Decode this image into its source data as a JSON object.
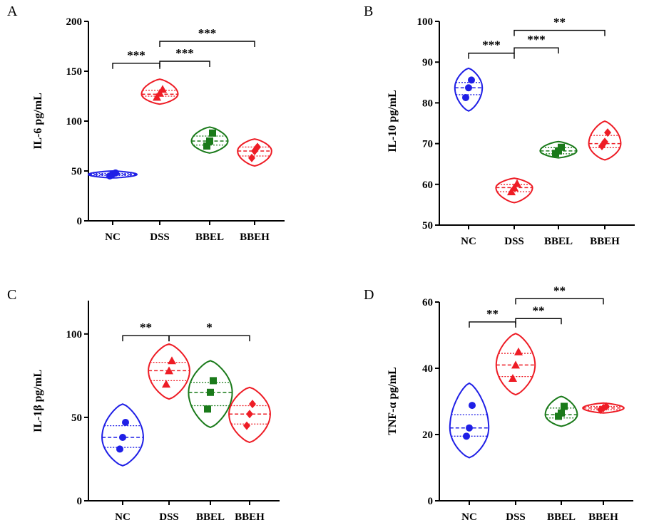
{
  "figure": {
    "categories": [
      "NC",
      "DSS",
      "BBEL",
      "BBEH"
    ],
    "colors": {
      "NC": "#1f1fe6",
      "DSS": "#ee1c25",
      "BBEL": "#1a7a1a",
      "BBEH": "#ee1c25"
    },
    "markers": {
      "NC": "circle",
      "DSS": "triangle",
      "BBEL": "square",
      "BBEH": "diamond"
    }
  },
  "chart_data": [
    {
      "type": "violin",
      "panel": "A",
      "ylabel": "IL-6 pg/mL",
      "ylim": [
        0,
        200
      ],
      "yticks": [
        0,
        50,
        100,
        150,
        200
      ],
      "categories": [
        "NC",
        "DSS",
        "BBEL",
        "BBEH"
      ],
      "groups": [
        {
          "name": "NC",
          "points": [
            45,
            47,
            48
          ],
          "median": 46.5,
          "q1": 45.5,
          "q3": 47.5,
          "min": 43,
          "max": 50,
          "width": 1.0
        },
        {
          "name": "DSS",
          "points": [
            124,
            128,
            132
          ],
          "median": 127,
          "q1": 125,
          "q3": 131,
          "min": 117,
          "max": 142,
          "width": 0.75
        },
        {
          "name": "BBEL",
          "points": [
            75,
            80,
            88
          ],
          "median": 80,
          "q1": 76,
          "q3": 85,
          "min": 68,
          "max": 94,
          "width": 0.75
        },
        {
          "name": "BBEH",
          "points": [
            63,
            70,
            74
          ],
          "median": 70,
          "q1": 65,
          "q3": 74,
          "min": 55,
          "max": 82,
          "width": 0.7
        }
      ],
      "significance": [
        {
          "from": "NC",
          "to": "DSS",
          "label": "***",
          "y": 158
        },
        {
          "from": "DSS",
          "to": "BBEL",
          "label": "***",
          "y": 160
        },
        {
          "from": "DSS",
          "to": "BBEH",
          "label": "***",
          "y": 180
        }
      ]
    },
    {
      "type": "violin",
      "panel": "B",
      "ylabel": "IL-10 pg/mL",
      "ylim": [
        50,
        100
      ],
      "yticks": [
        50,
        60,
        70,
        80,
        90,
        100
      ],
      "categories": [
        "NC",
        "DSS",
        "BBEL",
        "BBEH"
      ],
      "groups": [
        {
          "name": "NC",
          "points": [
            81.3,
            83.7,
            85.6
          ],
          "median": 83.7,
          "q1": 82,
          "q3": 85,
          "min": 78,
          "max": 88.5,
          "width": 0.6
        },
        {
          "name": "DSS",
          "points": [
            58.2,
            59.2,
            60.2
          ],
          "median": 59.2,
          "q1": 58.2,
          "q3": 60,
          "min": 55.5,
          "max": 61.5,
          "width": 0.8
        },
        {
          "name": "BBEL",
          "points": [
            67.6,
            68.2,
            69.1
          ],
          "median": 68.2,
          "q1": 67.5,
          "q3": 69,
          "min": 66.5,
          "max": 70.5,
          "width": 0.8
        },
        {
          "name": "BBEH",
          "points": [
            69.4,
            70.4,
            72.7
          ],
          "median": 70,
          "q1": 69,
          "q3": 72,
          "min": 66,
          "max": 75.5,
          "width": 0.7
        }
      ],
      "significance": [
        {
          "from": "NC",
          "to": "DSS",
          "label": "***",
          "y": 92.2
        },
        {
          "from": "DSS",
          "to": "BBEL",
          "label": "***",
          "y": 93.5
        },
        {
          "from": "DSS",
          "to": "BBEH",
          "label": "**",
          "y": 97.8
        }
      ]
    },
    {
      "type": "violin",
      "panel": "C",
      "ylabel": "IL-1β pg/mL",
      "ylim": [
        0,
        120
      ],
      "yticks": [
        0,
        50,
        100
      ],
      "categories": [
        "NC",
        "DSS",
        "BBEL",
        "BBEH"
      ],
      "groups": [
        {
          "name": "NC",
          "points": [
            31,
            38,
            47
          ],
          "median": 38,
          "q1": 32,
          "q3": 45,
          "min": 21,
          "max": 58,
          "width": 0.85
        },
        {
          "name": "DSS",
          "points": [
            70,
            78,
            84
          ],
          "median": 78,
          "q1": 72,
          "q3": 83,
          "min": 61,
          "max": 94,
          "width": 0.85
        },
        {
          "name": "BBEL",
          "points": [
            55,
            65,
            72
          ],
          "median": 65,
          "q1": 57,
          "q3": 71,
          "min": 44,
          "max": 84,
          "width": 0.9
        },
        {
          "name": "BBEH",
          "points": [
            45,
            52,
            58
          ],
          "median": 52,
          "q1": 46,
          "q3": 57,
          "min": 35,
          "max": 68,
          "width": 0.85
        }
      ],
      "significance": [
        {
          "from": "NC",
          "to": "DSS",
          "label": "**",
          "y": 99
        },
        {
          "from": "DSS",
          "to": "BBEH",
          "label": "*",
          "y": 99
        }
      ]
    },
    {
      "type": "violin",
      "panel": "D",
      "ylabel": "TNF-α pg/mL",
      "ylim": [
        0,
        60
      ],
      "yticks": [
        0,
        20,
        40,
        60
      ],
      "categories": [
        "NC",
        "DSS",
        "BBEL",
        "BBEH"
      ],
      "groups": [
        {
          "name": "NC",
          "points": [
            19.5,
            22,
            28.8
          ],
          "median": 22,
          "q1": 19.5,
          "q3": 26,
          "min": 13,
          "max": 35.5,
          "width": 0.85
        },
        {
          "name": "DSS",
          "points": [
            37,
            41,
            45
          ],
          "median": 41,
          "q1": 37.5,
          "q3": 44.5,
          "min": 32,
          "max": 50.5,
          "width": 0.85
        },
        {
          "name": "BBEL",
          "points": [
            25.5,
            26.5,
            28.5
          ],
          "median": 26,
          "q1": 25,
          "q3": 28,
          "min": 22.5,
          "max": 31.5,
          "width": 0.7
        },
        {
          "name": "BBEH",
          "points": [
            27.5,
            28,
            28.5
          ],
          "median": 28,
          "q1": 27.5,
          "q3": 28.5,
          "min": 26.5,
          "max": 29.5,
          "width": 0.9
        }
      ],
      "significance": [
        {
          "from": "NC",
          "to": "DSS",
          "label": "**",
          "y": 54
        },
        {
          "from": "DSS",
          "to": "BBEL",
          "label": "**",
          "y": 55
        },
        {
          "from": "DSS",
          "to": "BBEH",
          "label": "**",
          "y": 61
        }
      ]
    }
  ]
}
